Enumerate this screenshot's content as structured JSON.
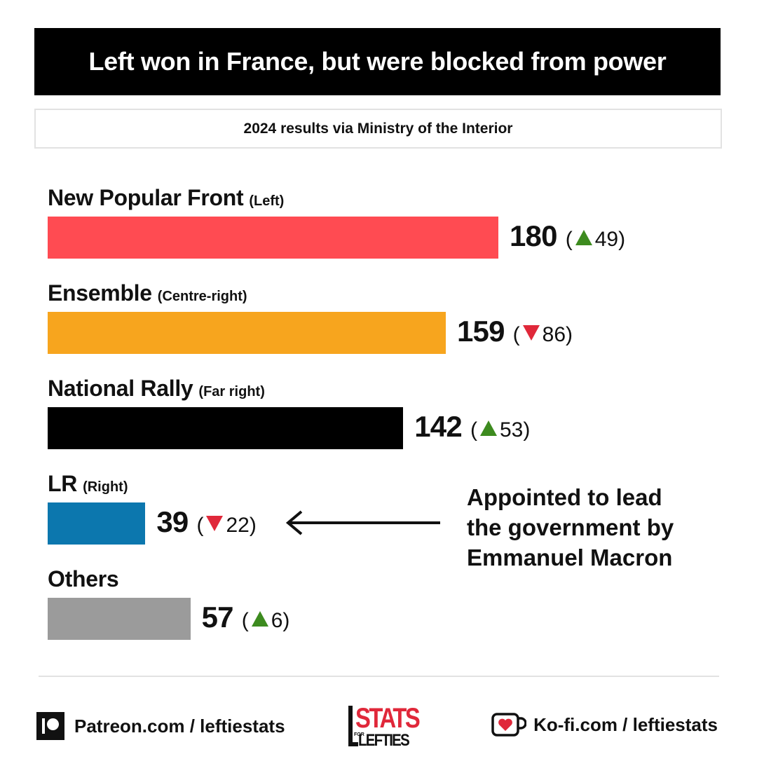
{
  "title": "Left won in France, but were blocked from power",
  "subtitle": "2024 results via Ministry of the Interior",
  "colors": {
    "nfp": "#ff4b52",
    "ensemble": "#f7a51e",
    "rn": "#000000",
    "lr": "#0c77ae",
    "others": "#9b9b9b",
    "up": "#3d8b1f",
    "down": "#e0283a"
  },
  "chart_data": {
    "type": "bar",
    "orientation": "horizontal",
    "categories": [
      "New Popular Front",
      "Ensemble",
      "National Rally",
      "LR",
      "Others"
    ],
    "category_notes": [
      "(Left)",
      "(Centre-right)",
      "(Far right)",
      "(Right)",
      ""
    ],
    "values": [
      180,
      159,
      142,
      39,
      57
    ],
    "changes": [
      {
        "direction": "up",
        "value": 49
      },
      {
        "direction": "down",
        "value": 86
      },
      {
        "direction": "up",
        "value": 53
      },
      {
        "direction": "down",
        "value": 22
      },
      {
        "direction": "up",
        "value": 6
      }
    ],
    "annotation": {
      "target": "LR",
      "text_lines": [
        "Appointed to lead",
        "the government by",
        "Emmanuel Macron"
      ]
    },
    "grid": false,
    "legend": "none"
  },
  "footer": {
    "patreon": "Patreon.com / leftiestats",
    "kofi": "Ko-fi.com / leftiestats",
    "logo_main": "STATS",
    "logo_for": "FOR",
    "logo_sub": "LEFTIES"
  }
}
